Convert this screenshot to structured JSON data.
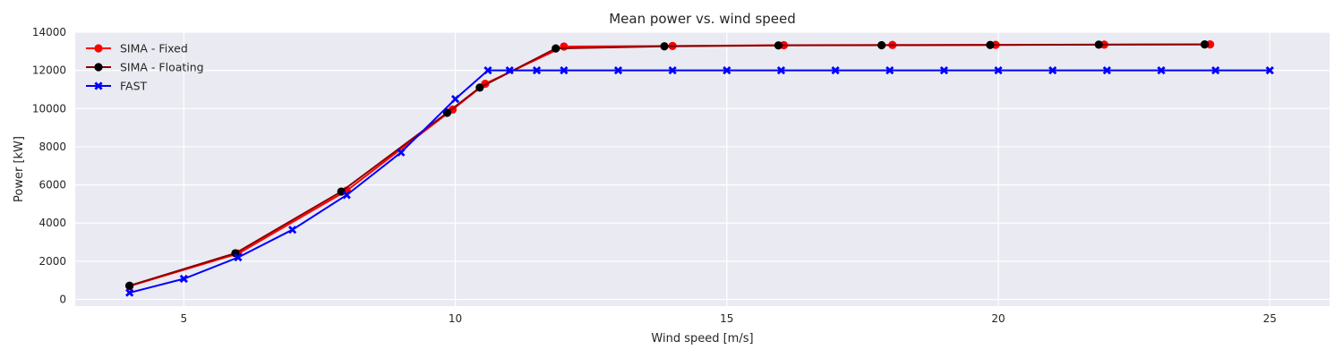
{
  "chart_data": {
    "type": "line",
    "title": "Mean power vs. wind speed",
    "xlabel": "Wind speed [m/s]",
    "ylabel": "Power [kW]",
    "xlim": [
      3.0,
      26.1
    ],
    "ylim": [
      -350,
      14000
    ],
    "xticks": [
      5,
      10,
      15,
      20,
      25
    ],
    "yticks": [
      0,
      2000,
      4000,
      6000,
      8000,
      10000,
      12000,
      14000
    ],
    "grid": true,
    "legend_position": "top-left",
    "background": "#eaeaf2",
    "series": [
      {
        "name": "SIMA - Fixed",
        "color": "#ff0000",
        "line_color": "#ff0000",
        "marker": "circle",
        "marker_color": "#ff0000",
        "x": [
          4.0,
          6.0,
          8.0,
          9.95,
          10.55,
          12.0,
          14.0,
          16.05,
          18.05,
          19.95,
          21.95,
          23.9
        ],
        "y": [
          700,
          2400,
          5700,
          9950,
          11300,
          13250,
          13280,
          13320,
          13330,
          13340,
          13350,
          13360
        ]
      },
      {
        "name": "SIMA - Floating",
        "color": "#000000",
        "line_color": "#8b0000",
        "marker": "circle",
        "marker_color": "#000000",
        "x": [
          4.0,
          5.95,
          7.9,
          9.85,
          10.45,
          11.85,
          13.85,
          15.95,
          17.85,
          19.85,
          21.85,
          23.8
        ],
        "y": [
          720,
          2420,
          5650,
          9780,
          11100,
          13150,
          13260,
          13310,
          13320,
          13330,
          13350,
          13360
        ]
      },
      {
        "name": "FAST",
        "color": "#0000ff",
        "line_color": "#0000ff",
        "marker": "x-cross",
        "marker_color": "#0000ff",
        "x": [
          4,
          5,
          6,
          7,
          8,
          9,
          10,
          10.6,
          11,
          11.5,
          12,
          13,
          14,
          15,
          16,
          17,
          18,
          19,
          20,
          21,
          22,
          23,
          24,
          25
        ],
        "y": [
          350,
          1080,
          2200,
          3650,
          5470,
          7700,
          10500,
          12000,
          12000,
          12000,
          12000,
          12000,
          12000,
          12000,
          12000,
          12000,
          12000,
          12000,
          12000,
          12000,
          12000,
          12000,
          12000,
          12000
        ]
      }
    ]
  }
}
